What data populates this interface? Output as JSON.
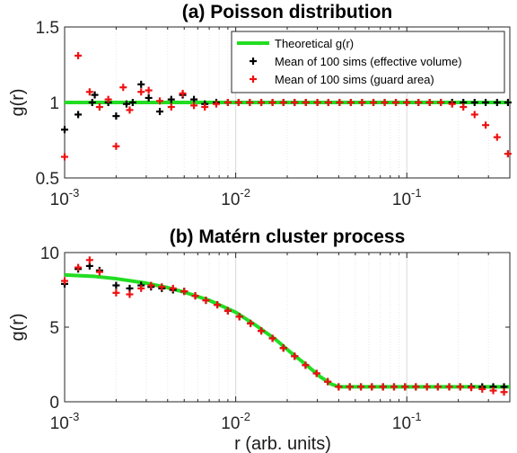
{
  "chart_data": [
    {
      "type": "scatter",
      "title": "(a) Poisson distribution",
      "ylabel": "g(r)",
      "xlabel": "",
      "xscale": "log",
      "xlim": [
        0.001,
        0.4
      ],
      "ylim": [
        0.5,
        1.5
      ],
      "yticks": [
        {
          "value": 0.5,
          "label": "0.5"
        },
        {
          "value": 1,
          "label": "1"
        },
        {
          "value": 1.5,
          "label": "1.5"
        }
      ],
      "xticks": [
        {
          "value": 0.001,
          "base": "10",
          "exp": "-3"
        },
        {
          "value": 0.01,
          "base": "10",
          "exp": "-2"
        },
        {
          "value": 0.1,
          "base": "10",
          "exp": "-1"
        }
      ],
      "grid": "vertical-minor",
      "legend": {
        "position": "top-right",
        "entries": [
          {
            "label": "Theoretical g(r)",
            "color": "#22dd22",
            "marker": "line"
          },
          {
            "label": "Mean of 100 sims (effective volume)",
            "color": "#000000",
            "marker": "plus"
          },
          {
            "label": "Mean of 100 sims (guard area)",
            "color": "#ee1111",
            "marker": "plus"
          }
        ]
      },
      "series": [
        {
          "name": "Theoretical g(r)",
          "color": "#22dd22",
          "style": "line",
          "x": [
            0.001,
            0.4
          ],
          "y": [
            1,
            1
          ]
        },
        {
          "name": "Mean of 100 sims (effective volume)",
          "color": "#000000",
          "style": "plus",
          "x": [
            0.001,
            0.0012,
            0.00145,
            0.0015,
            0.0018,
            0.002,
            0.0023,
            0.0025,
            0.0028,
            0.0031,
            0.0036,
            0.0042,
            0.0049,
            0.0057,
            0.0066,
            0.0077,
            0.009,
            0.0104,
            0.0121,
            0.0141,
            0.0164,
            0.019,
            0.0221,
            0.0257,
            0.03,
            0.0348,
            0.0405,
            0.0471,
            0.0548,
            0.0638,
            0.0742,
            0.0863,
            0.1,
            0.117,
            0.136,
            0.158,
            0.184,
            0.214,
            0.249,
            0.289,
            0.337,
            0.39
          ],
          "y": [
            0.82,
            0.92,
            1.0,
            1.05,
            1.0,
            0.91,
            0.99,
            1.0,
            1.12,
            1.03,
            0.94,
            1.02,
            1.05,
            1.02,
            0.99,
            1.0,
            1.0,
            1.0,
            1.0,
            1.0,
            1.0,
            1.0,
            1.0,
            1.0,
            1.0,
            1.0,
            1.0,
            1.0,
            1.0,
            1.0,
            1.0,
            1.0,
            1.0,
            1.0,
            1.0,
            1.0,
            1.0,
            1.0,
            1.0,
            1.0,
            1.0,
            1.0
          ]
        },
        {
          "name": "Mean of 100 sims (guard area)",
          "color": "#ee1111",
          "style": "plus",
          "x": [
            0.001,
            0.0012,
            0.0014,
            0.0016,
            0.0018,
            0.002,
            0.0022,
            0.0024,
            0.0028,
            0.0031,
            0.0036,
            0.0042,
            0.0049,
            0.0057,
            0.0066,
            0.0077,
            0.009,
            0.0104,
            0.0121,
            0.0141,
            0.0164,
            0.019,
            0.0221,
            0.0257,
            0.03,
            0.0348,
            0.0405,
            0.0471,
            0.0548,
            0.0638,
            0.0742,
            0.0863,
            0.1,
            0.117,
            0.136,
            0.158,
            0.184,
            0.214,
            0.249,
            0.289,
            0.337,
            0.39
          ],
          "y": [
            0.64,
            1.31,
            1.07,
            0.97,
            1.02,
            0.71,
            1.1,
            0.95,
            1.07,
            1.08,
            1.01,
            0.97,
            1.06,
            0.98,
            0.97,
            0.99,
            1.0,
            1.0,
            1.0,
            1.0,
            1.0,
            1.0,
            1.0,
            1.0,
            1.0,
            1.0,
            1.0,
            1.0,
            1.0,
            1.0,
            1.0,
            1.0,
            1.0,
            1.0,
            1.0,
            1.0,
            0.99,
            0.97,
            0.92,
            0.85,
            0.77,
            0.66
          ]
        }
      ]
    },
    {
      "type": "scatter",
      "title": "(b) Matérn  cluster process",
      "ylabel": "g(r)",
      "xlabel": "r (arb. units)",
      "xscale": "log",
      "xlim": [
        0.001,
        0.4
      ],
      "ylim": [
        0,
        10
      ],
      "yticks": [
        {
          "value": 0,
          "label": "0"
        },
        {
          "value": 5,
          "label": "5"
        },
        {
          "value": 10,
          "label": "10"
        }
      ],
      "xticks": [
        {
          "value": 0.001,
          "base": "10",
          "exp": "-3"
        },
        {
          "value": 0.01,
          "base": "10",
          "exp": "-2"
        },
        {
          "value": 0.1,
          "base": "10",
          "exp": "-1"
        }
      ],
      "grid": "vertical-minor",
      "series": [
        {
          "name": "Theoretical g(r)",
          "color": "#22dd22",
          "style": "line",
          "x": [
            0.001,
            0.0015,
            0.002,
            0.003,
            0.004,
            0.005,
            0.007,
            0.01,
            0.013,
            0.017,
            0.021,
            0.026,
            0.031,
            0.036,
            0.04,
            0.043,
            0.1,
            0.4
          ],
          "y": [
            8.5,
            8.4,
            8.25,
            7.95,
            7.65,
            7.35,
            6.8,
            6.0,
            5.15,
            4.2,
            3.3,
            2.45,
            1.7,
            1.2,
            1.0,
            1.0,
            1.0,
            1.0
          ]
        },
        {
          "name": "Mean of 100 sims (effective volume)",
          "color": "#000000",
          "style": "plus",
          "x": [
            0.001,
            0.0012,
            0.0014,
            0.0016,
            0.002,
            0.0024,
            0.0028,
            0.0032,
            0.0037,
            0.0043,
            0.005,
            0.0058,
            0.0067,
            0.0078,
            0.009,
            0.0105,
            0.0122,
            0.0141,
            0.0164,
            0.019,
            0.0221,
            0.0256,
            0.0297,
            0.0345,
            0.04,
            0.0464,
            0.0539,
            0.0625,
            0.0726,
            0.0842,
            0.0977,
            0.113,
            0.131,
            0.152,
            0.177,
            0.205,
            0.238,
            0.276,
            0.32,
            0.37
          ],
          "y": [
            7.9,
            8.9,
            9.1,
            8.8,
            7.8,
            7.6,
            7.8,
            7.7,
            7.6,
            7.5,
            7.4,
            7.1,
            6.8,
            6.5,
            6.1,
            5.7,
            5.25,
            4.75,
            4.25,
            3.6,
            3.05,
            2.45,
            1.9,
            1.35,
            1.0,
            1.0,
            1.0,
            1.0,
            1.0,
            1.0,
            1.0,
            1.0,
            1.0,
            1.0,
            1.0,
            1.0,
            1.0,
            1.0,
            1.0,
            1.0
          ]
        },
        {
          "name": "Mean of 100 sims (guard area)",
          "color": "#ee1111",
          "style": "plus",
          "x": [
            0.001,
            0.0012,
            0.0014,
            0.0016,
            0.002,
            0.0024,
            0.0028,
            0.0032,
            0.0037,
            0.0043,
            0.005,
            0.0058,
            0.0067,
            0.0078,
            0.009,
            0.0105,
            0.0122,
            0.0141,
            0.0164,
            0.019,
            0.0221,
            0.0256,
            0.0297,
            0.0345,
            0.04,
            0.0464,
            0.0539,
            0.0625,
            0.0726,
            0.0842,
            0.0977,
            0.113,
            0.131,
            0.152,
            0.177,
            0.205,
            0.238,
            0.276,
            0.32,
            0.37
          ],
          "y": [
            8.1,
            9.0,
            9.5,
            8.7,
            7.3,
            7.2,
            7.6,
            7.8,
            7.7,
            7.6,
            7.4,
            7.1,
            6.8,
            6.5,
            6.1,
            5.7,
            5.25,
            4.75,
            4.25,
            3.6,
            3.05,
            2.45,
            1.9,
            1.35,
            1.0,
            1.0,
            1.0,
            1.0,
            1.0,
            1.0,
            1.0,
            1.0,
            1.0,
            1.0,
            1.0,
            1.0,
            0.95,
            0.85,
            0.75,
            0.65
          ]
        }
      ]
    }
  ]
}
